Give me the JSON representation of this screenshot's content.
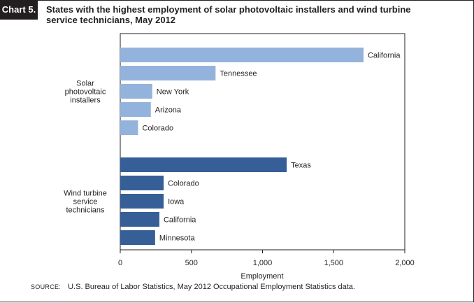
{
  "header": {
    "chart_label": "Chart 5.",
    "title": "States with the highest employment of solar photovoltaic installers and wind turbine service technicians, May 2012"
  },
  "source": {
    "label": "SOURCE:",
    "text": "U.S. Bureau of Labor Statistics, May 2012 Occupational Employment Statistics data."
  },
  "colors": {
    "solar": "#94b3dc",
    "wind": "#355f96",
    "text": "#231f20"
  },
  "chart_data": {
    "type": "bar",
    "orientation": "horizontal",
    "xlabel": "Employment",
    "xlim": [
      0,
      2000
    ],
    "xticks": [
      {
        "value": 0,
        "label": "0"
      },
      {
        "value": 500,
        "label": "500"
      },
      {
        "value": 1000,
        "label": "1,000"
      },
      {
        "value": 1500,
        "label": "1,500"
      },
      {
        "value": 2000,
        "label": "2,000"
      }
    ],
    "grid": false,
    "groups": [
      {
        "name": "Solar photovoltaic installers",
        "label_lines": [
          "Solar",
          "photovoltaic",
          "installers"
        ],
        "color": "#94b3dc",
        "bars": [
          {
            "label": "California",
            "value": 1710
          },
          {
            "label": "Tennessee",
            "value": 670
          },
          {
            "label": "New York",
            "value": 225
          },
          {
            "label": "Arizona",
            "value": 215
          },
          {
            "label": "Colorado",
            "value": 125
          }
        ]
      },
      {
        "name": "Wind turbine service technicians",
        "label_lines": [
          "Wind turbine",
          "service",
          "technicians"
        ],
        "color": "#355f96",
        "bars": [
          {
            "label": "Texas",
            "value": 1170
          },
          {
            "label": "Colorado",
            "value": 305
          },
          {
            "label": "Iowa",
            "value": 305
          },
          {
            "label": "California",
            "value": 275
          },
          {
            "label": "Minnesota",
            "value": 245
          }
        ]
      }
    ]
  }
}
